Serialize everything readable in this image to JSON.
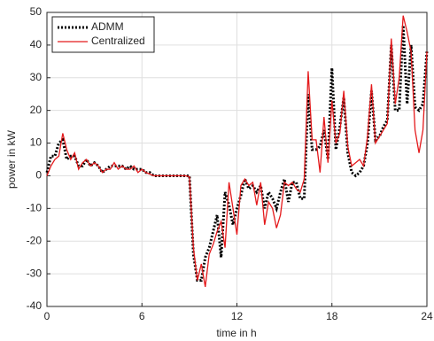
{
  "chart_data": {
    "type": "line",
    "x": [
      0,
      0.25,
      0.5,
      0.75,
      1,
      1.25,
      1.5,
      1.75,
      2,
      2.25,
      2.5,
      2.75,
      3,
      3.25,
      3.5,
      3.75,
      4,
      4.25,
      4.5,
      4.75,
      5,
      5.25,
      5.5,
      5.75,
      6,
      6.25,
      6.5,
      6.75,
      7,
      7.25,
      7.5,
      7.75,
      8,
      8.25,
      8.5,
      8.75,
      9,
      9.25,
      9.5,
      9.75,
      10,
      10.25,
      10.5,
      10.75,
      11,
      11.25,
      11.5,
      11.75,
      12,
      12.25,
      12.5,
      12.75,
      13,
      13.25,
      13.5,
      13.75,
      14,
      14.25,
      14.5,
      14.75,
      15,
      15.25,
      15.5,
      15.75,
      16,
      16.25,
      16.5,
      16.75,
      17,
      17.25,
      17.5,
      17.75,
      18,
      18.25,
      18.5,
      18.75,
      19,
      19.25,
      19.5,
      19.75,
      20,
      20.25,
      20.5,
      20.75,
      21,
      21.25,
      21.5,
      21.75,
      22,
      22.25,
      22.5,
      22.75,
      23,
      23.25,
      23.5,
      23.75,
      24
    ],
    "series": [
      {
        "name": "ADMM",
        "color": "#000000",
        "values": [
          1,
          6,
          6,
          10,
          11,
          5,
          6,
          6,
          3,
          3,
          5,
          3,
          4,
          3,
          1,
          2,
          3,
          3,
          3,
          3,
          2,
          3,
          2,
          2,
          2,
          1,
          1,
          0,
          0,
          0,
          0,
          0,
          0,
          0,
          0,
          0,
          0,
          -24,
          -32,
          -32,
          -25,
          -22,
          -17,
          -12,
          -25,
          -5,
          -9,
          -15,
          -10,
          -6,
          -1,
          -4,
          -3,
          -5,
          -3,
          -10,
          -5,
          -7,
          -10,
          -5,
          -1,
          -8,
          -2,
          -2,
          -7,
          -7,
          25,
          8,
          8,
          9,
          14,
          5,
          33,
          8,
          15,
          24,
          7,
          1,
          0,
          1,
          3,
          10,
          26,
          11,
          12,
          15,
          17,
          40,
          20,
          20,
          46,
          22,
          40,
          21,
          20,
          22,
          38
        ]
      },
      {
        "name": "Centralized",
        "color": "#e41a1c",
        "values": [
          0,
          3,
          5,
          6,
          13,
          8,
          5,
          7,
          2,
          4,
          5,
          3,
          4,
          3,
          1,
          2,
          2,
          4,
          2,
          3,
          2,
          2,
          3,
          1,
          2,
          1,
          0.5,
          0,
          0,
          0,
          0,
          0,
          0,
          0,
          0,
          0,
          -0.3,
          -22,
          -32,
          -27,
          -34,
          -24,
          -21,
          -17,
          -14,
          -22,
          -2,
          -10,
          -18,
          -3,
          -1,
          -3,
          -2,
          -9,
          -2,
          -15,
          -8,
          -10,
          -16,
          -12,
          -2,
          -3,
          -2,
          -4,
          -5,
          -1,
          32,
          11,
          11,
          1,
          18,
          4,
          23,
          10,
          13,
          26,
          9,
          3,
          4,
          5,
          3,
          12,
          28,
          10,
          12,
          14,
          16,
          42,
          22,
          30,
          49,
          44,
          38,
          14,
          7,
          14,
          38
        ]
      }
    ],
    "x_label": "time in h",
    "y_label": "power in kW",
    "xlim": [
      0,
      24
    ],
    "xticks": [
      0,
      6,
      12,
      18,
      24
    ],
    "ylim": [
      -40,
      50
    ],
    "yticks": [
      -40,
      -30,
      -20,
      -10,
      0,
      10,
      20,
      30,
      40,
      50
    ],
    "grid": true,
    "legend": "upper left"
  }
}
